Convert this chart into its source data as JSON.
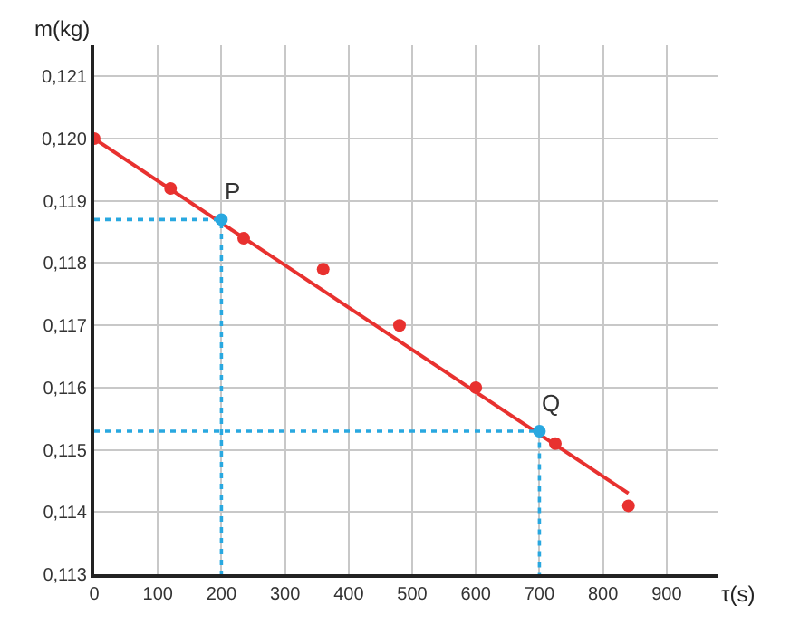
{
  "chart_data": {
    "type": "scatter",
    "xlabel": "τ(s)",
    "ylabel": "m(kg)",
    "xlim": [
      0,
      980
    ],
    "ylim": [
      0.113,
      0.1215
    ],
    "xticks": [
      0,
      100,
      200,
      300,
      400,
      500,
      600,
      700,
      800,
      900
    ],
    "yticks": [
      {
        "value": 0.113,
        "label": "0,113"
      },
      {
        "value": 0.114,
        "label": "0,114"
      },
      {
        "value": 0.115,
        "label": "0,115"
      },
      {
        "value": 0.116,
        "label": "0,116"
      },
      {
        "value": 0.117,
        "label": "0,117"
      },
      {
        "value": 0.118,
        "label": "0,118"
      },
      {
        "value": 0.119,
        "label": "0,119"
      },
      {
        "value": 0.12,
        "label": "0,120"
      },
      {
        "value": 0.121,
        "label": "0,121"
      }
    ],
    "grid": true,
    "series": [
      {
        "type": "line",
        "color": "#e8312f",
        "x": [
          0,
          840
        ],
        "values": [
          0.12,
          0.1143
        ],
        "marker": "none",
        "line_style": "solid"
      },
      {
        "color": "#e8312f",
        "x": [
          0,
          120,
          235,
          360,
          480,
          600,
          725,
          840
        ],
        "values": [
          0.12,
          0.1192,
          0.1184,
          0.1179,
          0.117,
          0.116,
          0.1151,
          0.1141
        ],
        "marker": "circle"
      },
      {
        "type": "line",
        "color": "#29a8e0",
        "x": [
          0,
          200,
          200
        ],
        "values": [
          0.1187,
          0.1187,
          0.113
        ],
        "marker": "none",
        "line_style": "dotted"
      },
      {
        "type": "line",
        "color": "#29a8e0",
        "x": [
          0,
          700,
          700
        ],
        "values": [
          0.1153,
          0.1153,
          0.113
        ],
        "marker": "none",
        "line_style": "dotted"
      },
      {
        "color": "#29a8e0",
        "x": [
          200,
          700
        ],
        "values": [
          0.1187,
          0.1153
        ],
        "marker": "circle"
      }
    ],
    "annotations": [
      {
        "text": "P",
        "x": 200,
        "y": 0.1187
      },
      {
        "text": "Q",
        "x": 700,
        "y": 0.1153
      }
    ]
  }
}
